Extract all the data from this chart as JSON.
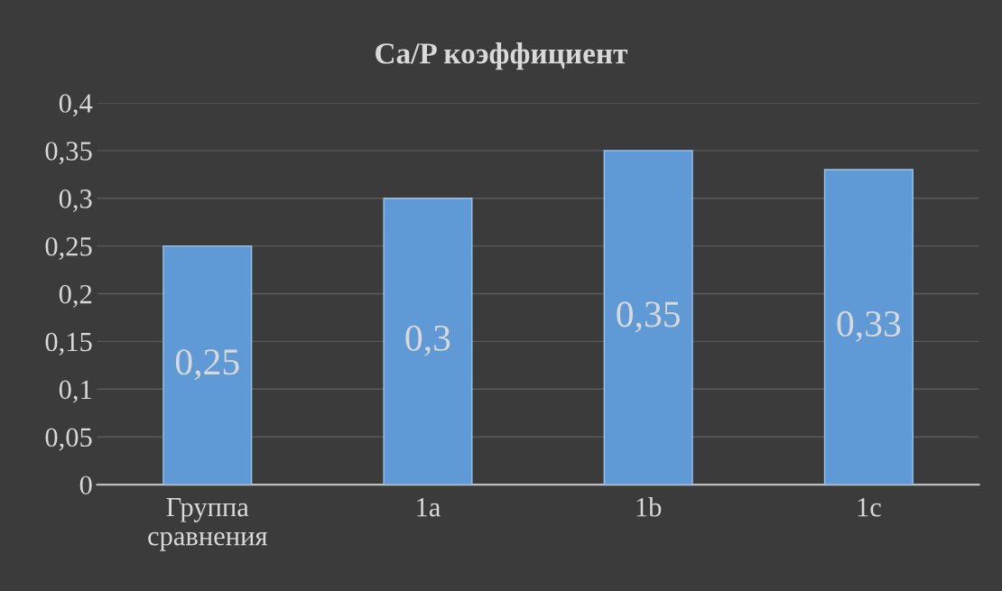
{
  "chart_data": {
    "type": "bar",
    "title": "Ca/P коэффициент",
    "categories": [
      "Группа\nсравнения",
      "1a",
      "1b",
      "1c"
    ],
    "values": [
      0.25,
      0.3,
      0.35,
      0.33
    ],
    "value_labels": [
      "0,25",
      "0,3",
      "0,35",
      "0,33"
    ],
    "color": "#5f9ad6",
    "ylim": [
      0,
      0.4
    ],
    "yticks": [
      0,
      {
        "value": 0.05,
        "label": "0,05"
      },
      {
        "value": 0.1,
        "label": "0,1"
      },
      {
        "value": 0.15,
        "label": "0,15"
      },
      {
        "value": 0.2,
        "label": "0,2"
      },
      {
        "value": 0.25,
        "label": "0,25"
      },
      {
        "value": 0.3,
        "label": "0,3"
      },
      {
        "value": 0.35,
        "label": "0,35"
      },
      {
        "value": 0.4,
        "label": "0,4"
      }
    ],
    "grid": "y",
    "legend": false
  }
}
